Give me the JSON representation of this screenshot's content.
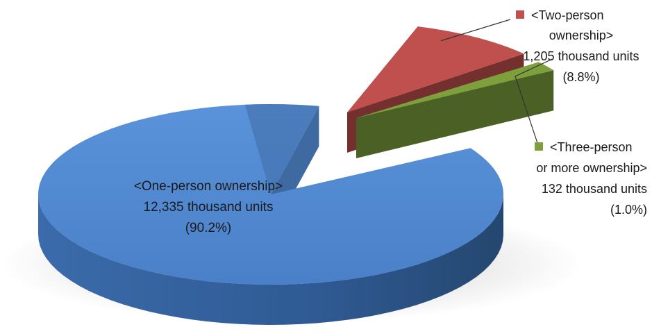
{
  "chart_data": {
    "type": "pie",
    "style": "3d-exploded",
    "unit": "thousand units",
    "slices": [
      {
        "name": "<One-person ownership>",
        "value": 12335,
        "percent": 90.2,
        "value_label": "12,335 thousand units",
        "percent_label": "(90.2%)",
        "color": "#4f86cf",
        "label_placement": "inside"
      },
      {
        "name": "<Two-person ownership>",
        "name_lines": [
          "<Two-person",
          "ownership>"
        ],
        "value": 1205,
        "percent": 8.8,
        "value_label": "1,205 thousand units",
        "percent_label": "(8.8%)",
        "color": "#c0504d",
        "label_placement": "top-right"
      },
      {
        "name": "<Three-person or more ownership>",
        "name_lines": [
          "<Three-person",
          "or more ownership>"
        ],
        "value": 132,
        "percent": 1.0,
        "value_label": "132 thousand units",
        "percent_label": "(1.0%)",
        "color": "#7da03c",
        "label_placement": "right"
      }
    ],
    "legend": "none",
    "title": ""
  }
}
